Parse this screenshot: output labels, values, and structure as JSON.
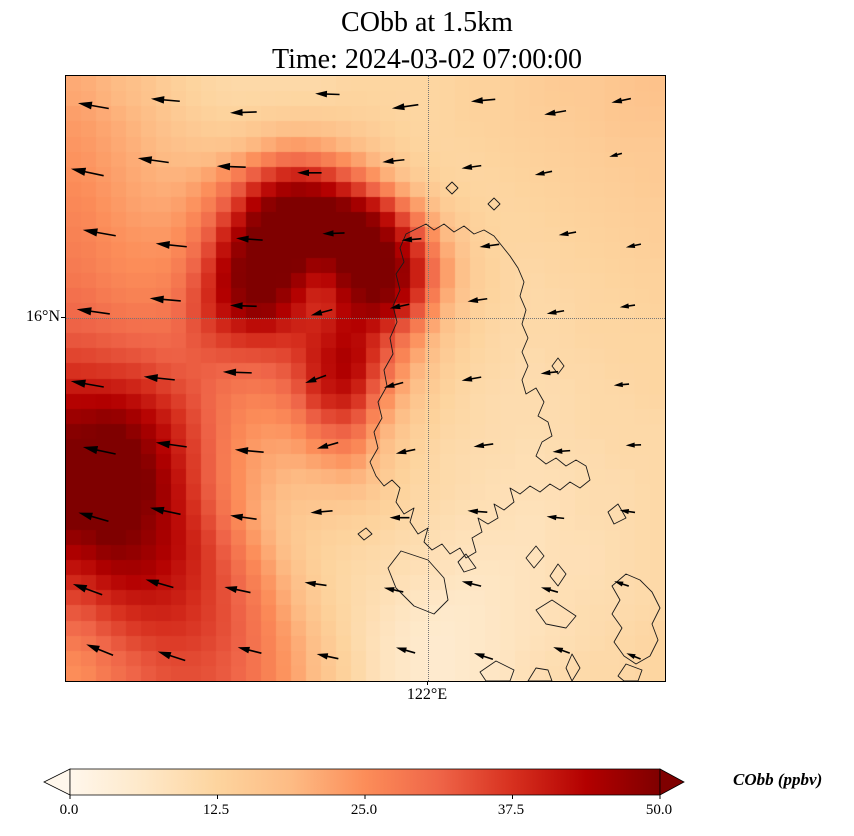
{
  "title": {
    "line1": "CObb at 1.5km",
    "line2": "Time: 2024-03-02 07:00:00"
  },
  "axes": {
    "ytick_label": "16°N",
    "xtick_label": "122°E"
  },
  "colorbar": {
    "label": "CObb (ppbv)",
    "ticks": [
      "0.0",
      "12.5",
      "25.0",
      "37.5",
      "50.0"
    ],
    "tick_values": [
      0,
      12.5,
      25,
      37.5,
      50
    ],
    "vmin": 0,
    "vmax": 50,
    "colormap": "OrRd",
    "extend": "both"
  },
  "chart_data": {
    "type": "heatmap",
    "title": "CObb at 1.5km",
    "subtitle": "Time: 2024-03-02 07:00:00",
    "variable": "CObb",
    "units": "ppbv",
    "vmin": 0,
    "vmax": 50,
    "y_tick": "16°N",
    "x_tick": "122°E",
    "grid_note": "estimated CObb ppbv, 20x20 cells, rows top-to-bottom over map extent",
    "grid": [
      [
        21,
        19,
        17,
        14,
        12,
        11,
        11,
        11,
        11,
        12,
        12,
        12,
        12,
        13,
        13,
        14,
        15,
        15,
        16,
        17
      ],
      [
        23,
        21,
        19,
        16,
        14,
        13,
        14,
        15,
        15,
        14,
        13,
        12,
        12,
        13,
        13,
        14,
        14,
        15,
        16,
        16
      ],
      [
        24,
        22,
        20,
        18,
        17,
        18,
        22,
        26,
        24,
        20,
        16,
        13,
        12,
        12,
        13,
        13,
        14,
        14,
        15,
        15
      ],
      [
        25,
        23,
        21,
        20,
        22,
        28,
        38,
        44,
        42,
        34,
        24,
        16,
        13,
        12,
        12,
        13,
        13,
        14,
        14,
        15
      ],
      [
        26,
        24,
        22,
        22,
        26,
        36,
        50,
        55,
        55,
        52,
        44,
        28,
        16,
        13,
        12,
        12,
        13,
        13,
        14,
        14
      ],
      [
        27,
        25,
        24,
        24,
        30,
        44,
        55,
        55,
        55,
        55,
        52,
        40,
        22,
        14,
        12,
        12,
        12,
        13,
        13,
        14
      ],
      [
        28,
        26,
        25,
        26,
        34,
        48,
        55,
        50,
        42,
        52,
        55,
        46,
        26,
        15,
        12,
        11,
        12,
        12,
        13,
        13
      ],
      [
        30,
        28,
        27,
        28,
        36,
        46,
        52,
        44,
        36,
        46,
        50,
        40,
        22,
        14,
        12,
        11,
        11,
        12,
        12,
        13
      ],
      [
        32,
        31,
        30,
        30,
        34,
        38,
        40,
        38,
        40,
        44,
        38,
        28,
        17,
        13,
        11,
        11,
        11,
        12,
        12,
        12
      ],
      [
        36,
        35,
        34,
        32,
        32,
        32,
        32,
        34,
        42,
        46,
        34,
        22,
        15,
        12,
        11,
        10,
        11,
        11,
        12,
        12
      ],
      [
        42,
        42,
        40,
        36,
        32,
        28,
        27,
        30,
        40,
        42,
        28,
        18,
        13,
        11,
        10,
        10,
        10,
        11,
        11,
        12
      ],
      [
        48,
        50,
        46,
        40,
        33,
        27,
        24,
        25,
        32,
        34,
        22,
        15,
        12,
        11,
        10,
        10,
        10,
        11,
        11,
        11
      ],
      [
        52,
        55,
        50,
        42,
        34,
        26,
        22,
        21,
        24,
        26,
        18,
        13,
        11,
        10,
        10,
        9,
        10,
        10,
        11,
        11
      ],
      [
        55,
        55,
        52,
        44,
        34,
        26,
        21,
        18,
        18,
        19,
        15,
        12,
        11,
        10,
        9,
        9,
        9,
        10,
        10,
        11
      ],
      [
        52,
        55,
        50,
        44,
        36,
        27,
        20,
        16,
        15,
        14,
        13,
        11,
        10,
        9,
        9,
        8,
        9,
        10,
        10,
        11
      ],
      [
        46,
        50,
        48,
        44,
        38,
        30,
        22,
        16,
        13,
        12,
        11,
        10,
        9,
        8,
        8,
        8,
        9,
        9,
        10,
        11
      ],
      [
        40,
        44,
        45,
        42,
        38,
        32,
        25,
        18,
        13,
        11,
        10,
        9,
        8,
        7,
        7,
        8,
        9,
        9,
        10,
        11
      ],
      [
        34,
        38,
        40,
        40,
        37,
        33,
        27,
        20,
        14,
        11,
        9,
        7,
        6,
        6,
        7,
        8,
        9,
        10,
        10,
        11
      ],
      [
        29,
        33,
        36,
        37,
        36,
        33,
        28,
        22,
        16,
        11,
        8,
        6,
        5,
        6,
        7,
        8,
        9,
        10,
        11,
        12
      ],
      [
        25,
        29,
        32,
        34,
        34,
        32,
        28,
        23,
        17,
        12,
        8,
        6,
        5,
        6,
        7,
        9,
        10,
        11,
        11,
        12
      ]
    ],
    "colormap_stops": [
      [
        0.0,
        "#fff7ec"
      ],
      [
        0.125,
        "#fee8c8"
      ],
      [
        0.25,
        "#fdd49e"
      ],
      [
        0.375,
        "#fdbb84"
      ],
      [
        0.5,
        "#fc8d59"
      ],
      [
        0.625,
        "#ef6548"
      ],
      [
        0.75,
        "#d7301f"
      ],
      [
        0.875,
        "#b30000"
      ],
      [
        1.0,
        "#7f0000"
      ]
    ],
    "arrow_format": [
      "fx",
      "fy",
      "angle_deg_ccw_from_east",
      "length_px"
    ],
    "wind_arrows": [
      [
        0.05,
        0.05,
        170,
        26
      ],
      [
        0.17,
        0.04,
        175,
        24
      ],
      [
        0.3,
        0.06,
        182,
        22
      ],
      [
        0.44,
        0.03,
        178,
        20
      ],
      [
        0.57,
        0.05,
        188,
        22
      ],
      [
        0.7,
        0.04,
        185,
        20
      ],
      [
        0.82,
        0.06,
        190,
        18
      ],
      [
        0.93,
        0.04,
        192,
        16
      ],
      [
        0.04,
        0.16,
        168,
        28
      ],
      [
        0.15,
        0.14,
        172,
        26
      ],
      [
        0.28,
        0.15,
        178,
        24
      ],
      [
        0.41,
        0.16,
        180,
        20
      ],
      [
        0.55,
        0.14,
        186,
        18
      ],
      [
        0.68,
        0.15,
        188,
        16
      ],
      [
        0.8,
        0.16,
        192,
        14
      ],
      [
        0.92,
        0.13,
        195,
        10
      ],
      [
        0.06,
        0.26,
        170,
        28
      ],
      [
        0.18,
        0.28,
        174,
        26
      ],
      [
        0.31,
        0.27,
        176,
        22
      ],
      [
        0.45,
        0.26,
        182,
        18
      ],
      [
        0.58,
        0.27,
        185,
        16
      ],
      [
        0.71,
        0.28,
        188,
        16
      ],
      [
        0.84,
        0.26,
        190,
        14
      ],
      [
        0.95,
        0.28,
        192,
        12
      ],
      [
        0.05,
        0.39,
        172,
        28
      ],
      [
        0.17,
        0.37,
        175,
        26
      ],
      [
        0.3,
        0.38,
        178,
        22
      ],
      [
        0.43,
        0.39,
        195,
        18
      ],
      [
        0.56,
        0.38,
        192,
        16
      ],
      [
        0.69,
        0.37,
        188,
        16
      ],
      [
        0.82,
        0.39,
        190,
        14
      ],
      [
        0.94,
        0.38,
        188,
        12
      ],
      [
        0.04,
        0.51,
        170,
        28
      ],
      [
        0.16,
        0.5,
        174,
        26
      ],
      [
        0.29,
        0.49,
        178,
        24
      ],
      [
        0.42,
        0.5,
        200,
        18
      ],
      [
        0.55,
        0.51,
        195,
        16
      ],
      [
        0.68,
        0.5,
        190,
        16
      ],
      [
        0.81,
        0.49,
        186,
        14
      ],
      [
        0.93,
        0.51,
        185,
        12
      ],
      [
        0.06,
        0.62,
        168,
        28
      ],
      [
        0.18,
        0.61,
        172,
        26
      ],
      [
        0.31,
        0.62,
        175,
        24
      ],
      [
        0.44,
        0.61,
        196,
        18
      ],
      [
        0.57,
        0.62,
        192,
        16
      ],
      [
        0.7,
        0.61,
        188,
        16
      ],
      [
        0.83,
        0.62,
        184,
        14
      ],
      [
        0.95,
        0.61,
        182,
        12
      ],
      [
        0.05,
        0.73,
        164,
        26
      ],
      [
        0.17,
        0.72,
        168,
        26
      ],
      [
        0.3,
        0.73,
        172,
        22
      ],
      [
        0.43,
        0.72,
        185,
        18
      ],
      [
        0.56,
        0.73,
        180,
        16
      ],
      [
        0.69,
        0.72,
        176,
        16
      ],
      [
        0.82,
        0.73,
        174,
        14
      ],
      [
        0.94,
        0.72,
        172,
        12
      ],
      [
        0.04,
        0.85,
        160,
        26
      ],
      [
        0.16,
        0.84,
        164,
        24
      ],
      [
        0.29,
        0.85,
        168,
        22
      ],
      [
        0.42,
        0.84,
        172,
        18
      ],
      [
        0.55,
        0.85,
        168,
        16
      ],
      [
        0.68,
        0.84,
        166,
        16
      ],
      [
        0.81,
        0.85,
        164,
        14
      ],
      [
        0.93,
        0.84,
        162,
        12
      ],
      [
        0.06,
        0.95,
        158,
        24
      ],
      [
        0.18,
        0.96,
        162,
        24
      ],
      [
        0.31,
        0.95,
        166,
        20
      ],
      [
        0.44,
        0.96,
        168,
        18
      ],
      [
        0.57,
        0.95,
        164,
        16
      ],
      [
        0.7,
        0.96,
        162,
        16
      ],
      [
        0.83,
        0.95,
        160,
        14
      ],
      [
        0.95,
        0.96,
        158,
        12
      ]
    ]
  }
}
